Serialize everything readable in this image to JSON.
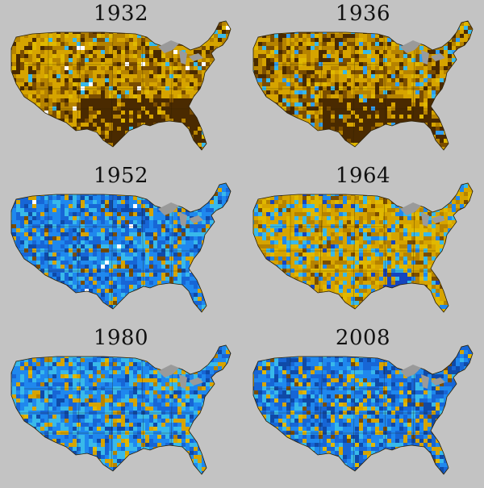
{
  "maps": [
    {
      "year": "1932",
      "palette": [
        "#d6a400",
        "#b68300",
        "#7a4d00",
        "#4a2a00",
        "#e0b800",
        "#38b9ea",
        "#ffffff"
      ],
      "weights": [
        0.34,
        0.25,
        0.17,
        0.12,
        0.07,
        0.04,
        0.01
      ]
    },
    {
      "year": "1936",
      "palette": [
        "#d6a400",
        "#b68300",
        "#7a4d00",
        "#4a2a00",
        "#e0b800",
        "#2f9ef2",
        "#38b9ea"
      ],
      "weights": [
        0.32,
        0.24,
        0.16,
        0.12,
        0.08,
        0.05,
        0.03
      ]
    },
    {
      "year": "1952",
      "palette": [
        "#1f88ee",
        "#1766d6",
        "#38b9ea",
        "#0f4aa8",
        "#d6a400",
        "#7a4d00",
        "#ffffff"
      ],
      "weights": [
        0.33,
        0.24,
        0.18,
        0.1,
        0.09,
        0.05,
        0.01
      ]
    },
    {
      "year": "1964",
      "palette": [
        "#d6a400",
        "#e0b800",
        "#b68300",
        "#38b9ea",
        "#1f88ee",
        "#7a4d00",
        "#1545c0"
      ],
      "weights": [
        0.34,
        0.2,
        0.15,
        0.13,
        0.1,
        0.05,
        0.03
      ]
    },
    {
      "year": "1980",
      "palette": [
        "#1f88ee",
        "#38b9ea",
        "#1766d6",
        "#d6a400",
        "#0f4aa8",
        "#b68300",
        "#e0b800"
      ],
      "weights": [
        0.3,
        0.25,
        0.18,
        0.12,
        0.08,
        0.04,
        0.03
      ]
    },
    {
      "year": "2008",
      "palette": [
        "#1f88ee",
        "#1766d6",
        "#0f4aa8",
        "#38b9ea",
        "#d6a400",
        "#e0b800",
        "#7a4d00"
      ],
      "weights": [
        0.3,
        0.25,
        0.15,
        0.12,
        0.1,
        0.05,
        0.03
      ]
    }
  ],
  "colors": {
    "background": "#c3c3c3",
    "lakes": "#9a9a9a",
    "outline": "#2a1e00"
  }
}
